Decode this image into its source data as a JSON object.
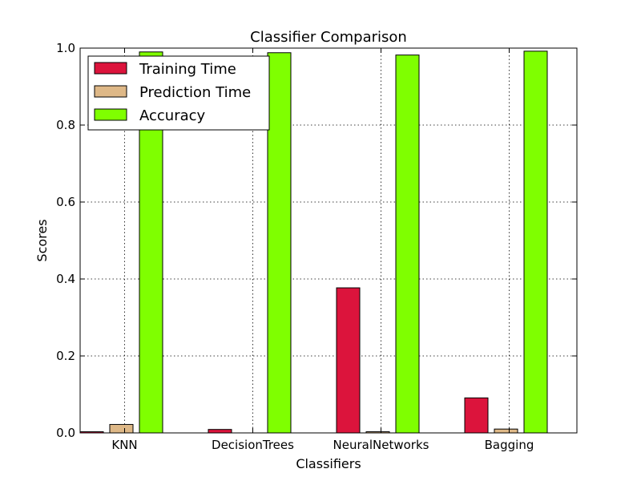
{
  "chart_data": {
    "type": "bar",
    "title": "Classifier Comparison",
    "xlabel": "Classifiers",
    "ylabel": "Scores",
    "ylim": [
      0,
      1.0
    ],
    "yticks": [
      "0.0",
      "0.2",
      "0.4",
      "0.6",
      "0.8",
      "1.0"
    ],
    "categories": [
      "KNN",
      "DecisionTrees",
      "NeuralNetworks",
      "Bagging"
    ],
    "grid": true,
    "legend_position": "top-left",
    "series": [
      {
        "name": "Training Time",
        "color": "#DC143C",
        "values": [
          0.003,
          0.009,
          0.377,
          0.091
        ]
      },
      {
        "name": "Prediction Time",
        "color": "#DEB887",
        "values": [
          0.022,
          0.0,
          0.003,
          0.01
        ]
      },
      {
        "name": "Accuracy",
        "color": "#7FFF00",
        "values": [
          0.99,
          0.988,
          0.982,
          0.992
        ]
      }
    ]
  }
}
